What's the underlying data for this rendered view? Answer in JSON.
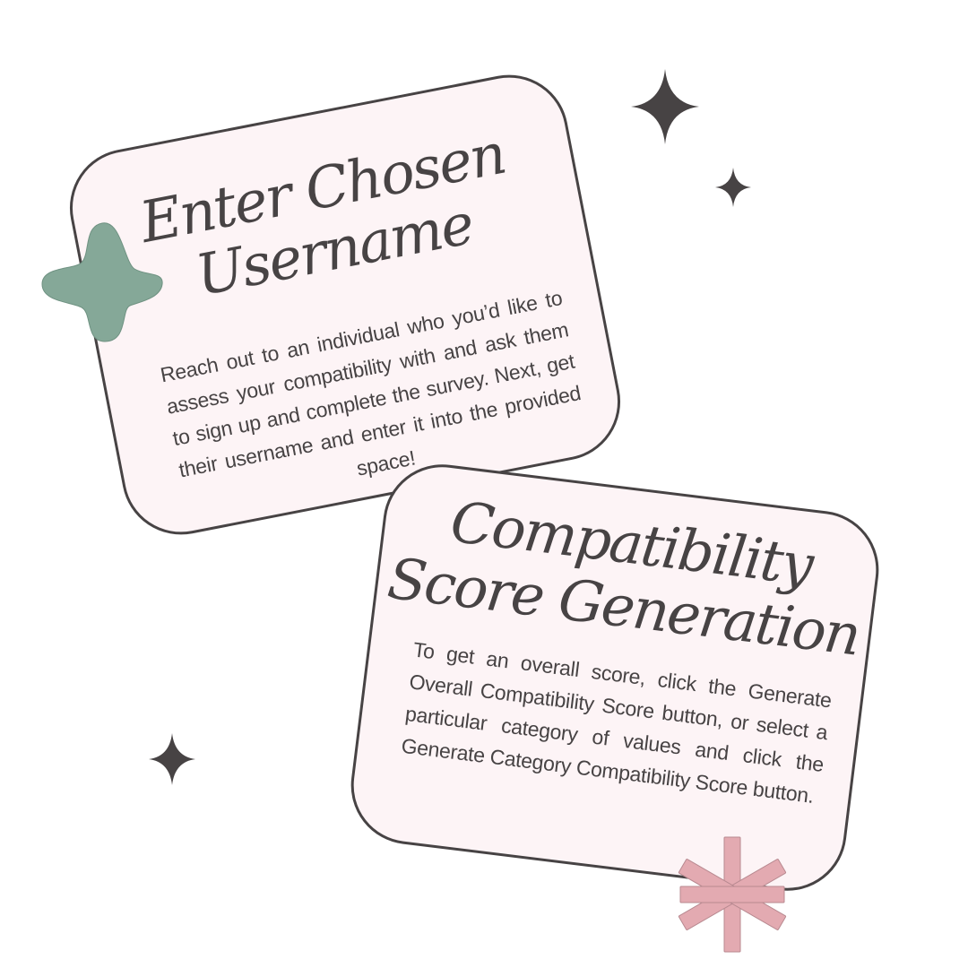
{
  "steps": [
    {
      "title": "Enter Chosen Username",
      "body": "Reach out to an individual who you’d like to assess your compatibility with and ask them to sign up and complete the survey. Next, get their username and enter it into the provided space!"
    },
    {
      "title": "Compatibility Score Generation",
      "body": "To get an overall score, click the Generate Overall Compatibility Score button, or select a particular category of values and click the Generate Category Compatibility Score button."
    }
  ],
  "colors": {
    "background": "#ffffff",
    "card_fill": "#fdf4f6",
    "ink": "#474344",
    "green_accent": "#85a898",
    "pink_accent": "#e3aab1"
  },
  "decorations": [
    "sparkle-icon",
    "sparkle-icon",
    "sparkle-icon",
    "four-petal-star-icon",
    "asterisk-burst-icon"
  ]
}
